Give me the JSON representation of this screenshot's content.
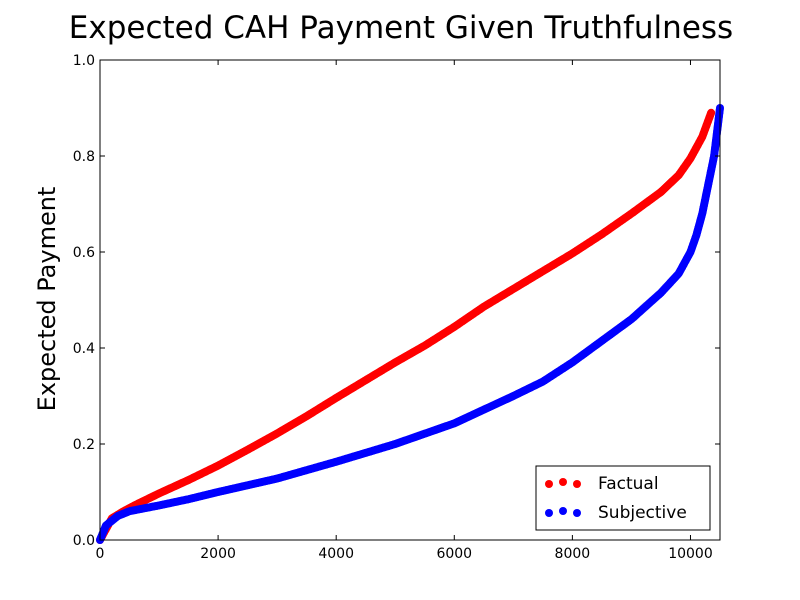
{
  "chart_data": {
    "type": "scatter",
    "title": "Expected CAH Payment Given Truthfulness",
    "xlabel": "",
    "ylabel": "Expected Payment",
    "xlim": [
      0,
      10500
    ],
    "ylim": [
      0,
      1.0
    ],
    "xticks": [
      0,
      2000,
      4000,
      6000,
      8000,
      10000
    ],
    "xtick_labels": [
      "0",
      "2000",
      "4000",
      "6000",
      "8000",
      "10000"
    ],
    "yticks": [
      0.0,
      0.2,
      0.4,
      0.6,
      0.8,
      1.0
    ],
    "ytick_labels": [
      "0.0",
      "0.2",
      "0.4",
      "0.6",
      "0.8",
      "1.0"
    ],
    "grid": false,
    "legend_position": "lower-right",
    "series": [
      {
        "name": "Factual",
        "color": "#ff0000",
        "x": [
          0,
          200,
          400,
          600,
          800,
          1000,
          1500,
          2000,
          2500,
          3000,
          3500,
          4000,
          4500,
          5000,
          5500,
          6000,
          6500,
          7000,
          7500,
          8000,
          8500,
          9000,
          9500,
          9800,
          10000,
          10200,
          10350
        ],
        "y": [
          0.0,
          0.045,
          0.06,
          0.073,
          0.085,
          0.097,
          0.125,
          0.155,
          0.188,
          0.222,
          0.258,
          0.296,
          0.333,
          0.37,
          0.405,
          0.444,
          0.486,
          0.523,
          0.56,
          0.597,
          0.637,
          0.68,
          0.725,
          0.76,
          0.795,
          0.84,
          0.89
        ]
      },
      {
        "name": "Subjective",
        "color": "#0000ff",
        "x": [
          0,
          100,
          300,
          500,
          1000,
          1500,
          2000,
          3000,
          4000,
          5000,
          6000,
          7000,
          7500,
          8000,
          8500,
          9000,
          9500,
          9800,
          10000,
          10100,
          10200,
          10300,
          10400,
          10450,
          10500
        ],
        "y": [
          0.0,
          0.03,
          0.05,
          0.06,
          0.072,
          0.085,
          0.1,
          0.128,
          0.163,
          0.2,
          0.243,
          0.3,
          0.33,
          0.37,
          0.415,
          0.46,
          0.515,
          0.555,
          0.6,
          0.635,
          0.68,
          0.74,
          0.8,
          0.85,
          0.9
        ]
      }
    ]
  }
}
